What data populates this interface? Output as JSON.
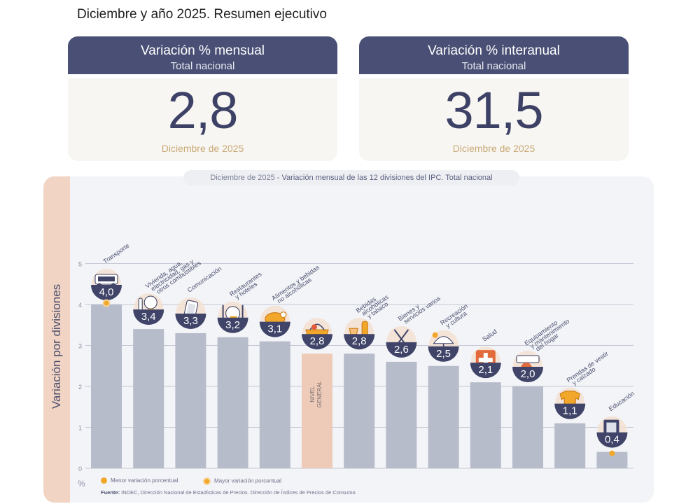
{
  "page_title": "Diciembre y año 2025. Resumen ejecutivo",
  "kpis": [
    {
      "title": "Variación % mensual",
      "subtitle": "Total nacional",
      "value": "2,8",
      "date": "Diciembre de 2025"
    },
    {
      "title": "Variación % interanual",
      "subtitle": "Total nacional",
      "value": "31,5",
      "date": "Diciembre de 2025"
    }
  ],
  "chart_title_date": "Diciembre de 2025",
  "chart_title_rest": " - Variación mensual de las 12 divisiones del IPC. Total nacional",
  "y_axis_label": "Variación por divisiones",
  "y_unit": "%",
  "legend": {
    "min": "Menor variación porcentual",
    "max": "Mayor variación porcentual"
  },
  "source_label": "Fuente:",
  "source_text": " INDEC, Dirección Nacional de Estadísticas de Precios. Dirección de Índices de Precios de Consumo.",
  "colors": {
    "bar": "#b7bccb",
    "general_bar": "#edcbb8",
    "badge": "#3f4468",
    "accent": "#f2a72b",
    "header": "#4a5075"
  },
  "chart_data": {
    "type": "bar",
    "ylim": [
      0,
      5
    ],
    "yticks": [
      "0",
      "1",
      "2",
      "3",
      "4",
      "5"
    ],
    "grid": true,
    "categories": [
      {
        "lines": [
          "Transporte"
        ],
        "label": "4,0",
        "icon": "car-icon"
      },
      {
        "lines": [
          "Vivienda, agua,",
          "electricidad, gas y",
          "otros combustibles"
        ],
        "label": "3,4",
        "icon": "lightbulb-icon"
      },
      {
        "lines": [
          "Comunicación"
        ],
        "label": "3,3",
        "icon": "phone-icon"
      },
      {
        "lines": [
          "Restaurantes",
          "y hoteles"
        ],
        "label": "3,2",
        "icon": "cutlery-icon"
      },
      {
        "lines": [
          "Alimentos y bebidas",
          "no alcohólicas"
        ],
        "label": "3,1",
        "icon": "chicken-icon"
      },
      {
        "lines": [],
        "label": "2,8",
        "icon": "basket-icon",
        "bar_text": [
          "NIVEL",
          "GENERAL"
        ]
      },
      {
        "lines": [
          "Bebidas",
          "alcohólicas",
          "y tabaco"
        ],
        "label": "2,8",
        "icon": "bottle-icon"
      },
      {
        "lines": [
          "Bienes y",
          "servicios varios"
        ],
        "label": "2,6",
        "icon": "scissors-icon"
      },
      {
        "lines": [
          "Recreación",
          "y cultura"
        ],
        "label": "2,5",
        "icon": "umbrella-icon"
      },
      {
        "lines": [
          "Salud"
        ],
        "label": "2,1",
        "icon": "medical-cross-icon"
      },
      {
        "lines": [
          "Equipamiento",
          "y mantenimiento",
          "del hogar"
        ],
        "label": "2,0",
        "icon": "air-conditioner-icon"
      },
      {
        "lines": [
          "Prendas de vestir",
          "y calzado"
        ],
        "label": "1,1",
        "icon": "tshirt-icon"
      },
      {
        "lines": [
          "Educación"
        ],
        "label": "0,4",
        "icon": "book-icon"
      }
    ],
    "values": [
      4.0,
      3.4,
      3.3,
      3.2,
      3.1,
      2.8,
      2.8,
      2.6,
      2.5,
      2.1,
      2.0,
      1.1,
      0.4
    ],
    "highlight_index": 5,
    "max_index": 0,
    "min_index": 12
  }
}
